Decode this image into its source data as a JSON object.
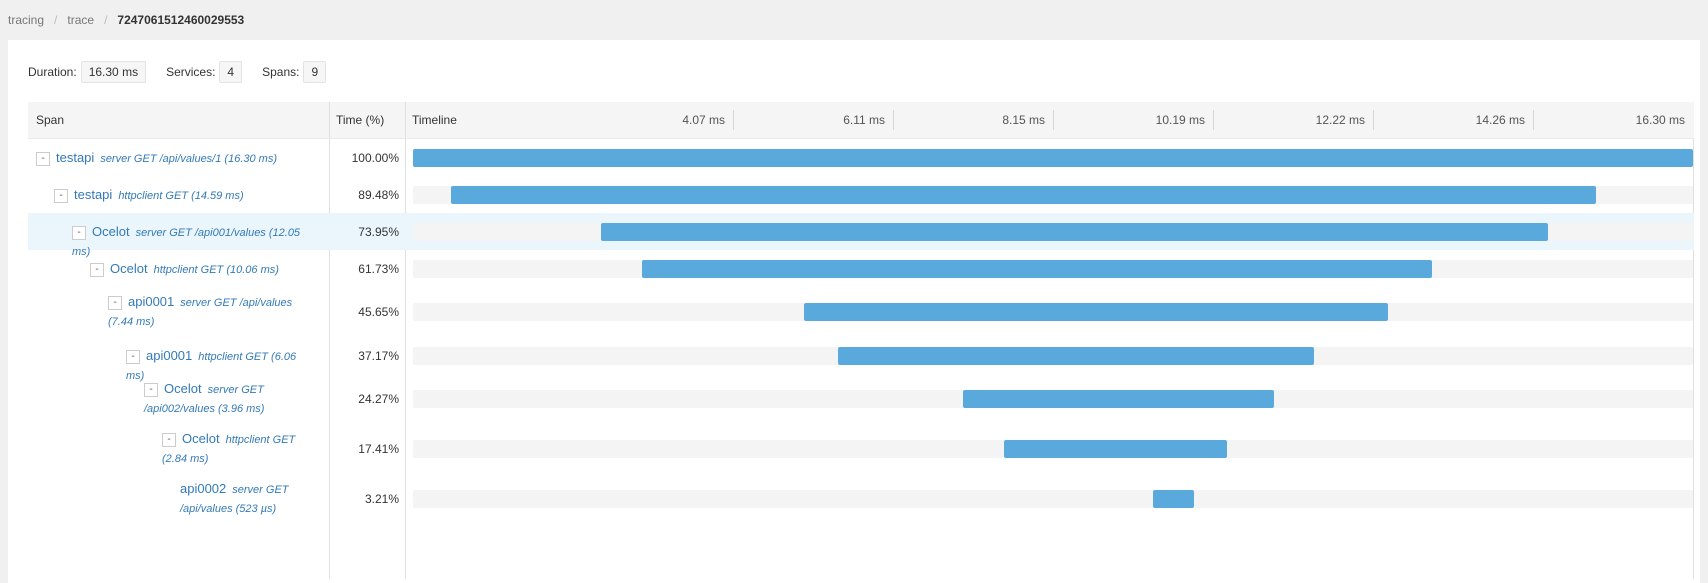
{
  "breadcrumb": {
    "items": [
      "tracing",
      "trace"
    ],
    "current": "7247061512460029553",
    "separator": "/"
  },
  "stats": {
    "duration_label": "Duration:",
    "duration_value": "16.30 ms",
    "services_label": "Services:",
    "services_value": "4",
    "spans_label": "Spans:",
    "spans_value": "9"
  },
  "table": {
    "col_span": "Span",
    "col_time": "Time (%)",
    "col_timeline": "Timeline",
    "ticks": [
      "4.07 ms",
      "6.11 ms",
      "8.15 ms",
      "10.19 ms",
      "12.22 ms",
      "14.26 ms",
      "16.30 ms"
    ]
  },
  "colors": {
    "bar": "#5aa9dc",
    "link": "#337ab7",
    "highlight_row": "#eaf5fc"
  },
  "spans": [
    {
      "service": "testapi",
      "operation": "server GET /api/values/1 (16.30 ms)",
      "percent": "100.00%",
      "start_ms": 0.0,
      "duration_ms": 16.3,
      "depth": 0,
      "toggle": "-"
    },
    {
      "service": "testapi",
      "operation": "httpclient GET (14.59 ms)",
      "percent": "89.48%",
      "start_ms": 0.48,
      "duration_ms": 14.59,
      "depth": 1,
      "toggle": "-"
    },
    {
      "service": "Ocelot",
      "operation": "server GET /api001/values (12.05 ms)",
      "percent": "73.95%",
      "start_ms": 2.4,
      "duration_ms": 12.05,
      "depth": 2,
      "toggle": "-",
      "highlight": true
    },
    {
      "service": "Ocelot",
      "operation": "httpclient GET (10.06 ms)",
      "percent": "61.73%",
      "start_ms": 2.92,
      "duration_ms": 10.06,
      "depth": 3,
      "toggle": "-"
    },
    {
      "service": "api0001",
      "operation": "server GET /api/values (7.44 ms)",
      "percent": "45.65%",
      "start_ms": 4.98,
      "duration_ms": 7.44,
      "depth": 4,
      "toggle": "-"
    },
    {
      "service": "api0001",
      "operation": "httpclient GET (6.06 ms)",
      "percent": "37.17%",
      "start_ms": 5.41,
      "duration_ms": 6.06,
      "depth": 5,
      "toggle": "-"
    },
    {
      "service": "Ocelot",
      "operation": "server GET /api002/values (3.96 ms)",
      "percent": "24.27%",
      "start_ms": 7.01,
      "duration_ms": 3.96,
      "depth": 6,
      "toggle": "-"
    },
    {
      "service": "Ocelot",
      "operation": "httpclient GET (2.84 ms)",
      "percent": "17.41%",
      "start_ms": 7.52,
      "duration_ms": 2.84,
      "depth": 7,
      "toggle": "-"
    },
    {
      "service": "api0002",
      "operation": "server GET /api/values (523 µs)",
      "percent": "3.21%",
      "start_ms": 9.42,
      "duration_ms": 0.523,
      "depth": 8,
      "toggle": ""
    }
  ]
}
